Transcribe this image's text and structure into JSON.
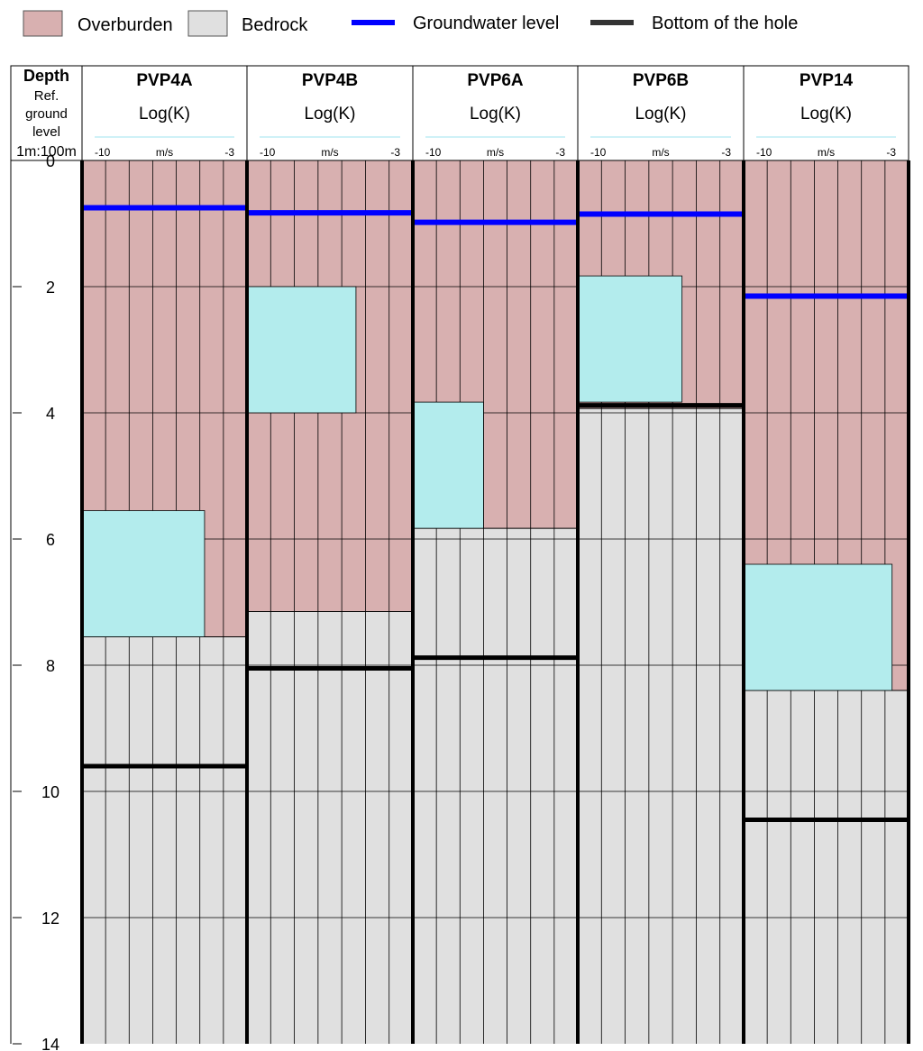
{
  "chart_data": {
    "type": "borehole-log",
    "legend": [
      {
        "label": "Overburden",
        "kind": "box",
        "color": "#d8b0b0"
      },
      {
        "label": "Bedrock",
        "kind": "box",
        "color": "#e0e0e0"
      },
      {
        "label": "Groundwater level",
        "kind": "line",
        "color": "#0000ff"
      },
      {
        "label": "Bottom of the hole",
        "kind": "line",
        "color": "#333333"
      }
    ],
    "depth_axis": {
      "header_title": "Depth",
      "header_lines": [
        "Ref.",
        "ground",
        "level"
      ],
      "scale_label": "1m:100m",
      "range": [
        0,
        14
      ],
      "ticks": [
        0,
        2,
        4,
        6,
        8,
        10,
        12,
        14
      ]
    },
    "k_axis": {
      "label": "Log(K)",
      "unit": "m/s",
      "min_label": "-10",
      "max_label": "-3",
      "min": -10,
      "max": -3
    },
    "boreholes": [
      {
        "name": "PVP4A",
        "overburden_bottom": 7.55,
        "groundwater": 0.75,
        "hole_bottom": 9.6,
        "k_tests": [
          {
            "from": 5.55,
            "to": 7.55,
            "logK": -4.8
          }
        ]
      },
      {
        "name": "PVP4B",
        "overburden_bottom": 7.15,
        "groundwater": 0.83,
        "hole_bottom": 8.05,
        "k_tests": [
          {
            "from": 2.0,
            "to": 4.0,
            "logK": -5.4
          }
        ]
      },
      {
        "name": "PVP6A",
        "overburden_bottom": 5.83,
        "groundwater": 0.98,
        "hole_bottom": 7.88,
        "k_tests": [
          {
            "from": 3.83,
            "to": 5.83,
            "logK": -7.0
          }
        ]
      },
      {
        "name": "PVP6B",
        "overburden_bottom": 3.93,
        "groundwater": 0.85,
        "hole_bottom": 3.88,
        "k_tests": [
          {
            "from": 1.83,
            "to": 3.83,
            "logK": -5.6
          }
        ]
      },
      {
        "name": "PVP14",
        "overburden_bottom": 8.4,
        "groundwater": 2.15,
        "hole_bottom": 10.45,
        "k_tests": [
          {
            "from": 6.4,
            "to": 8.4,
            "logK": -3.7
          }
        ]
      }
    ],
    "colors": {
      "overburden": "#d8b0b0",
      "bedrock": "#e0e0e0",
      "groundwater": "#0000ff",
      "hole_bottom": "#000000",
      "k_test": "#b3eced"
    }
  }
}
